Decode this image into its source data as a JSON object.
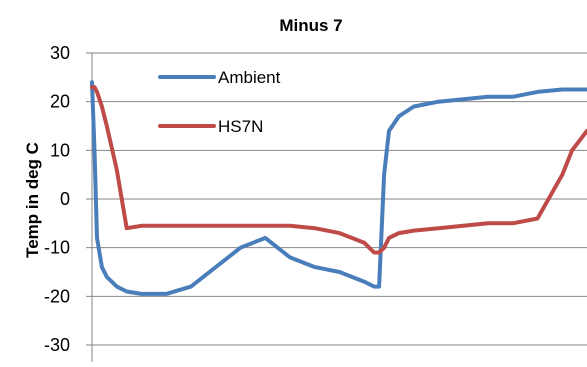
{
  "chart_data": {
    "type": "line",
    "title": "Minus 7",
    "xlabel": "",
    "ylabel": "Temp in deg C",
    "ylim": [
      -30,
      30
    ],
    "yticks": [
      30,
      20,
      10,
      0,
      -10,
      -20,
      -30
    ],
    "ytick_labels": [
      "30",
      "20",
      "10",
      "0",
      "-10",
      "-20",
      "-30"
    ],
    "grid": true,
    "legend_position": "top-left",
    "x": [
      0,
      0.5,
      1,
      2,
      3,
      5,
      7,
      10,
      15,
      20,
      25,
      30,
      35,
      40,
      45,
      50,
      55,
      57,
      58,
      59,
      60,
      62,
      65,
      70,
      75,
      80,
      85,
      90,
      95,
      97,
      100
    ],
    "series": [
      {
        "name": "Ambient",
        "color": "#4a7ebb",
        "values": [
          24,
          10,
          -8,
          -14,
          -16,
          -18,
          -19,
          -19.5,
          -19.5,
          -18,
          -14,
          -10,
          -8,
          -12,
          -14,
          -15,
          -17,
          -18,
          -18,
          5,
          14,
          17,
          19,
          20,
          20.5,
          21,
          21,
          22,
          22.5,
          22.5,
          22.5
        ]
      },
      {
        "name": "HS7N",
        "color": "#be4b48",
        "values": [
          23,
          23,
          22,
          19,
          15,
          6,
          -6,
          -5.5,
          -5.5,
          -5.5,
          -5.5,
          -5.5,
          -5.5,
          -5.5,
          -6,
          -7,
          -9,
          -11,
          -11,
          -10,
          -8,
          -7,
          -6.5,
          -6,
          -5.5,
          -5,
          -5,
          -4,
          5,
          10,
          14
        ]
      }
    ]
  }
}
